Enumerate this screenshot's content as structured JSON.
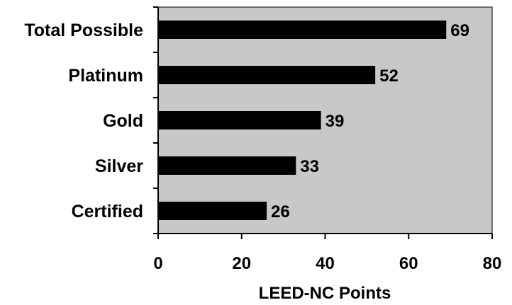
{
  "chart_data": {
    "type": "bar",
    "orientation": "horizontal",
    "categories": [
      "Total Possible",
      "Platinum",
      "Gold",
      "Silver",
      "Certified"
    ],
    "values": [
      69,
      52,
      39,
      33,
      26
    ],
    "data_labels": [
      "69",
      "52",
      "39",
      "33",
      "26"
    ],
    "xlabel": "LEED-NC Points",
    "ylabel": "",
    "xlim": [
      0,
      80
    ],
    "xticks": [
      0,
      20,
      40,
      60,
      80
    ],
    "tick_labels": [
      "0",
      "20",
      "40",
      "60",
      "80"
    ],
    "grid": false,
    "legend": "none",
    "colors": {
      "plot_background": "#c8c8c8",
      "bar": "#000000",
      "axis": "#000000"
    }
  }
}
